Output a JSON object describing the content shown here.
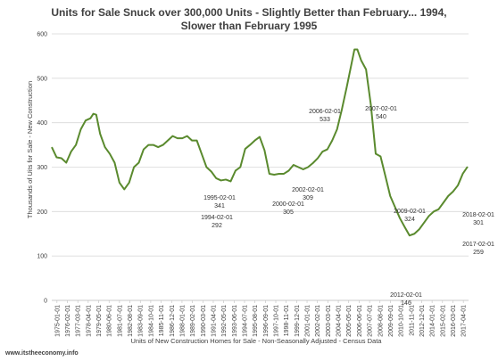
{
  "chart_data": {
    "type": "line",
    "title_line1": "Units for Sale Snuck over 300,000 Units - Slightly Better than February... 1994,",
    "title_line2": "Slower than February 1995",
    "xlabel": "Units of New Construction Homes for Sale - Non-Seasonally Adjusted - Census Data",
    "ylabel": "Thousands of Uits for Sale - New Construction",
    "ylim": [
      0,
      600
    ],
    "yticks": [
      0,
      100,
      200,
      300,
      400,
      500,
      600
    ],
    "xlim": [
      1975.0,
      2018.1
    ],
    "grid": true,
    "xtick_labels": [
      "1975-01-01",
      "1976-02-01",
      "1977-03-01",
      "1978-04-01",
      "1979-05-01",
      "1980-06-01",
      "1981-07-01",
      "1982-08-01",
      "1983-09-01",
      "1984-10-01",
      "1985-11-01",
      "1986-12-01",
      "1988-01-01",
      "1989-02-01",
      "1990-03-01",
      "1991-04-01",
      "1992-05-01",
      "1993-06-01",
      "1994-07-01",
      "1995-08-01",
      "1996-09-01",
      "1997-10-01",
      "1998-11-01",
      "1999-12-01",
      "2001-01-01",
      "2002-02-01",
      "2003-03-01",
      "2004-04-01",
      "2005-05-01",
      "2006-06-01",
      "2007-07-01",
      "2008-08-01",
      "2009-09-01",
      "2010-10-01",
      "2011-11-01",
      "2012-12-01",
      "2014-01-01",
      "2015-02-01",
      "2016-03-01",
      "2017-04-01"
    ],
    "series": [
      {
        "color": "#5a8a2e",
        "x": [
          1975.0,
          1975.5,
          1976.0,
          1976.5,
          1977.0,
          1977.5,
          1978.0,
          1978.5,
          1979.0,
          1979.3,
          1979.6,
          1980.0,
          1980.5,
          1981.0,
          1981.5,
          1982.0,
          1982.5,
          1983.0,
          1983.5,
          1984.0,
          1984.5,
          1985.0,
          1985.5,
          1986.0,
          1986.5,
          1987.0,
          1987.5,
          1988.0,
          1988.5,
          1989.0,
          1989.5,
          1990.0,
          1990.5,
          1991.0,
          1991.5,
          1992.0,
          1992.5,
          1993.0,
          1993.5,
          1994.0,
          1994.5,
          1995.0,
          1995.5,
          1996.0,
          1996.5,
          1997.0,
          1997.5,
          1998.0,
          1998.5,
          1999.0,
          1999.5,
          2000.0,
          2000.5,
          2001.0,
          2001.5,
          2002.0,
          2002.5,
          2003.0,
          2003.5,
          2004.0,
          2004.5,
          2005.0,
          2005.5,
          2006.0,
          2006.3,
          2006.6,
          2007.0,
          2007.5,
          2008.0,
          2008.5,
          2009.0,
          2009.5,
          2010.0,
          2010.5,
          2011.0,
          2011.5,
          2012.0,
          2012.5,
          2013.0,
          2013.5,
          2014.0,
          2014.5,
          2015.0,
          2015.5,
          2016.0,
          2016.5,
          2017.0,
          2017.5,
          2018.0
        ],
        "y": [
          345,
          322,
          320,
          310,
          335,
          350,
          385,
          405,
          410,
          420,
          418,
          375,
          345,
          330,
          310,
          265,
          250,
          265,
          300,
          310,
          340,
          350,
          350,
          345,
          350,
          360,
          370,
          365,
          365,
          370,
          360,
          360,
          330,
          300,
          290,
          275,
          270,
          272,
          268,
          292,
          300,
          341,
          350,
          360,
          368,
          338,
          285,
          283,
          285,
          285,
          292,
          305,
          300,
          295,
          300,
          309,
          320,
          335,
          340,
          360,
          385,
          430,
          480,
          533,
          565,
          565,
          540,
          520,
          440,
          330,
          324,
          280,
          235,
          210,
          185,
          165,
          146,
          150,
          160,
          175,
          190,
          200,
          205,
          220,
          235,
          245,
          259,
          285,
          301
        ]
      }
    ],
    "annotations": [
      {
        "date": "1994-02-01",
        "value": "292"
      },
      {
        "date": "1995-02-01",
        "value": "341"
      },
      {
        "date": "2000-02-01",
        "value": "305"
      },
      {
        "date": "2002-02-01",
        "value": "309"
      },
      {
        "date": "2006-02-01",
        "value": "533"
      },
      {
        "date": "2007-02-01",
        "value": "540"
      },
      {
        "date": "2009-02-01",
        "value": "324"
      },
      {
        "date": "2012-02-01",
        "value": "146"
      },
      {
        "date": "2017-02-01",
        "value": "259"
      },
      {
        "date": "2018-02-01",
        "value": "301"
      }
    ]
  },
  "footer": {
    "source": "www.itstheeconomy.info"
  }
}
